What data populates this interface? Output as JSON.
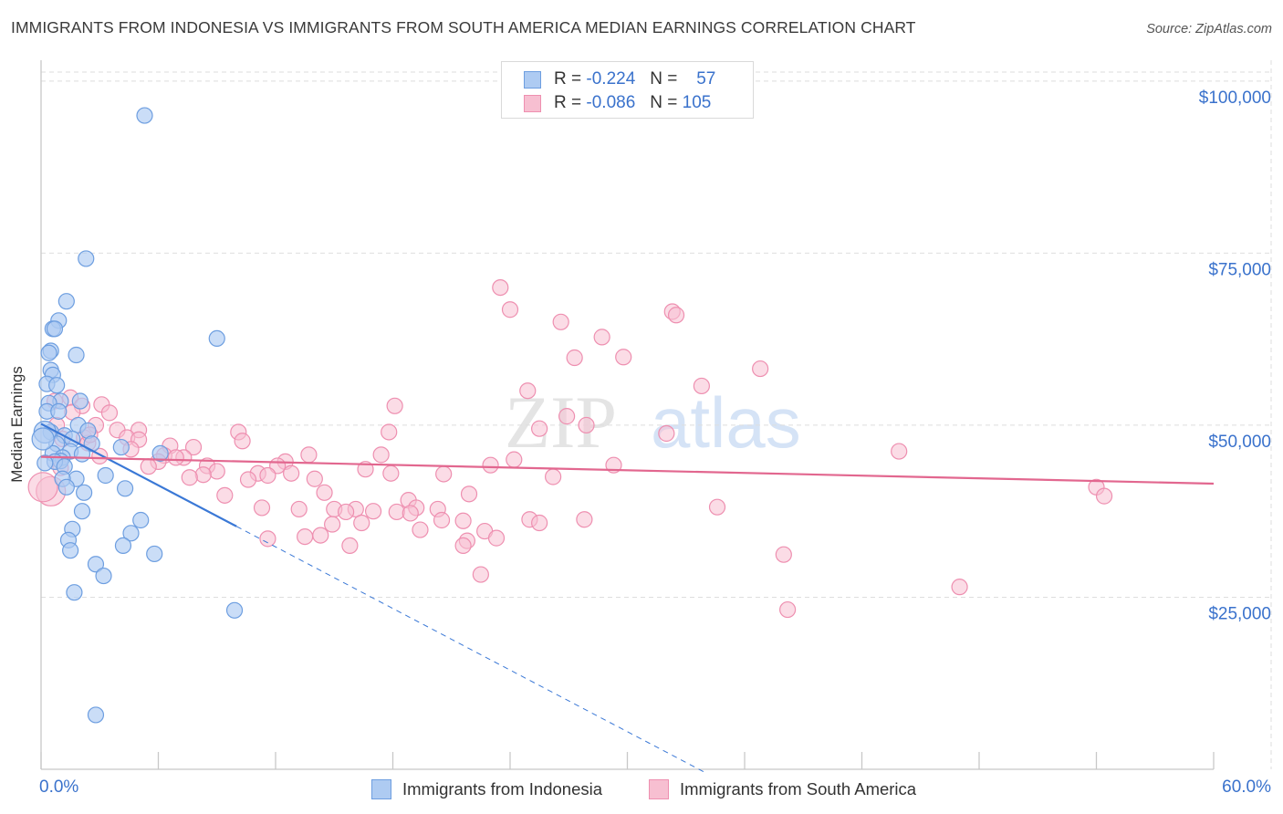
{
  "title": "IMMIGRANTS FROM INDONESIA VS IMMIGRANTS FROM SOUTH AMERICA MEDIAN EARNINGS CORRELATION CHART",
  "source": "Source: ZipAtlas.com",
  "watermark": {
    "text_a": "ZIP",
    "text_b": "atlas"
  },
  "legend": {
    "r_label": "R =",
    "n_label": "N =",
    "indonesia": {
      "r": "-0.224",
      "n": "57"
    },
    "south_america": {
      "r": "-0.086",
      "n": "105"
    }
  },
  "bottom_legend": {
    "indonesia": "Immigrants from Indonesia",
    "south_america": "Immigrants from South America"
  },
  "colors": {
    "indonesia_fill": "#aecbf2",
    "indonesia_stroke": "#6d9ee0",
    "indonesia_line": "#3a78d6",
    "south_america_fill": "#f7bfd1",
    "south_america_stroke": "#ee8fb0",
    "south_america_line": "#e2678f",
    "axis_label": "#3a72cc",
    "grid": "#dedede"
  },
  "chart_data": {
    "type": "scatter",
    "title": "IMMIGRANTS FROM INDONESIA VS IMMIGRANTS FROM SOUTH AMERICA MEDIAN EARNINGS CORRELATION CHART",
    "xlabel": "",
    "ylabel": "Median Earnings",
    "xlim": [
      0,
      60
    ],
    "ylim": [
      0,
      102500
    ],
    "x_tick_labels": [
      "0.0%",
      "60.0%"
    ],
    "y_ticks": [
      25000,
      50000,
      75000,
      100000
    ],
    "y_tick_labels": [
      "$25,000",
      "$50,000",
      "$75,000",
      "$100,000"
    ],
    "series": [
      {
        "name": "Immigrants from Indonesia",
        "r": -0.224,
        "n": 57,
        "trendline": {
          "x0": 0,
          "y0": 50200,
          "x1": 10,
          "y1": 35300,
          "dashed_to_x": 34,
          "dashed_to_y": -500
        },
        "points": [
          [
            5.3,
            95000
          ],
          [
            2.3,
            74200
          ],
          [
            1.3,
            68000
          ],
          [
            0.9,
            65200
          ],
          [
            0.6,
            64000
          ],
          [
            0.7,
            64000
          ],
          [
            0.5,
            60800
          ],
          [
            0.4,
            60500
          ],
          [
            1.8,
            60200
          ],
          [
            9.0,
            62600
          ],
          [
            0.5,
            58000
          ],
          [
            0.6,
            57300
          ],
          [
            0.3,
            56000
          ],
          [
            0.8,
            55800
          ],
          [
            1.0,
            53500
          ],
          [
            0.4,
            53200
          ],
          [
            2.0,
            53500
          ],
          [
            0.3,
            52000
          ],
          [
            0.9,
            52000
          ],
          [
            1.9,
            50000
          ],
          [
            0.5,
            49000
          ],
          [
            2.4,
            49200
          ],
          [
            1.2,
            48500
          ],
          [
            1.6,
            48000
          ],
          [
            0.8,
            47300
          ],
          [
            2.6,
            47300
          ],
          [
            1.5,
            46200
          ],
          [
            0.6,
            45900
          ],
          [
            2.1,
            45800
          ],
          [
            1.1,
            45300
          ],
          [
            6.1,
            45900
          ],
          [
            4.1,
            46800
          ],
          [
            1.0,
            44800
          ],
          [
            0.7,
            44700
          ],
          [
            1.2,
            44000
          ],
          [
            0.2,
            44500
          ],
          [
            3.3,
            42700
          ],
          [
            1.8,
            42200
          ],
          [
            1.1,
            42200
          ],
          [
            2.2,
            40200
          ],
          [
            4.3,
            40800
          ],
          [
            1.3,
            41000
          ],
          [
            2.1,
            37500
          ],
          [
            5.1,
            36200
          ],
          [
            1.6,
            34900
          ],
          [
            4.6,
            34300
          ],
          [
            1.4,
            33300
          ],
          [
            4.2,
            32500
          ],
          [
            1.5,
            31800
          ],
          [
            5.8,
            31300
          ],
          [
            2.8,
            29800
          ],
          [
            3.2,
            28100
          ],
          [
            1.7,
            25700
          ],
          [
            9.9,
            23100
          ],
          [
            2.8,
            7900
          ],
          [
            0.2,
            49000
          ],
          [
            0.1,
            48000
          ]
        ]
      },
      {
        "name": "Immigrants from South America",
        "r": -0.086,
        "n": 105,
        "trendline": {
          "x0": 0,
          "y0": 45400,
          "x1": 60,
          "y1": 41500
        },
        "points": [
          [
            23.5,
            70000
          ],
          [
            24.0,
            66800
          ],
          [
            32.3,
            66500
          ],
          [
            32.5,
            66000
          ],
          [
            26.6,
            65000
          ],
          [
            28.7,
            62800
          ],
          [
            27.3,
            59800
          ],
          [
            29.8,
            59900
          ],
          [
            36.8,
            58200
          ],
          [
            33.8,
            55700
          ],
          [
            24.9,
            55000
          ],
          [
            1.5,
            54000
          ],
          [
            0.7,
            53500
          ],
          [
            3.1,
            53000
          ],
          [
            2.1,
            52800
          ],
          [
            18.1,
            52800
          ],
          [
            1.6,
            51900
          ],
          [
            3.5,
            51800
          ],
          [
            26.9,
            51300
          ],
          [
            0.8,
            50000
          ],
          [
            2.8,
            50000
          ],
          [
            27.9,
            50000
          ],
          [
            3.9,
            49300
          ],
          [
            5.0,
            49300
          ],
          [
            10.1,
            49000
          ],
          [
            17.8,
            49000
          ],
          [
            32.0,
            48800
          ],
          [
            4.4,
            48200
          ],
          [
            2.2,
            48200
          ],
          [
            1.1,
            48000
          ],
          [
            10.3,
            47700
          ],
          [
            5.0,
            47900
          ],
          [
            2.4,
            47400
          ],
          [
            6.6,
            47000
          ],
          [
            7.8,
            46800
          ],
          [
            4.6,
            46500
          ],
          [
            43.9,
            46200
          ],
          [
            6.3,
            45600
          ],
          [
            7.3,
            45300
          ],
          [
            6.9,
            45300
          ],
          [
            13.7,
            45700
          ],
          [
            17.4,
            45700
          ],
          [
            24.2,
            45000
          ],
          [
            12.5,
            44700
          ],
          [
            6.0,
            44700
          ],
          [
            8.5,
            44100
          ],
          [
            12.1,
            44100
          ],
          [
            5.5,
            44000
          ],
          [
            29.3,
            44200
          ],
          [
            23.0,
            44200
          ],
          [
            16.6,
            43600
          ],
          [
            9.0,
            43300
          ],
          [
            11.1,
            43000
          ],
          [
            12.8,
            43000
          ],
          [
            8.3,
            42800
          ],
          [
            17.9,
            43000
          ],
          [
            20.6,
            42900
          ],
          [
            11.6,
            42700
          ],
          [
            7.6,
            42400
          ],
          [
            26.2,
            42500
          ],
          [
            14.0,
            42200
          ],
          [
            10.6,
            42100
          ],
          [
            54.0,
            41000
          ],
          [
            0.5,
            40400
          ],
          [
            14.5,
            40200
          ],
          [
            21.9,
            40000
          ],
          [
            54.4,
            39700
          ],
          [
            9.4,
            39800
          ],
          [
            18.8,
            39100
          ],
          [
            19.2,
            38000
          ],
          [
            11.3,
            38000
          ],
          [
            13.2,
            37800
          ],
          [
            15.0,
            37800
          ],
          [
            16.1,
            37800
          ],
          [
            20.3,
            37800
          ],
          [
            34.6,
            38100
          ],
          [
            15.6,
            37400
          ],
          [
            18.2,
            37400
          ],
          [
            18.9,
            37200
          ],
          [
            17.0,
            37500
          ],
          [
            25.0,
            36300
          ],
          [
            25.5,
            35800
          ],
          [
            27.8,
            36300
          ],
          [
            20.5,
            36200
          ],
          [
            21.6,
            36100
          ],
          [
            14.9,
            35600
          ],
          [
            16.4,
            35800
          ],
          [
            19.4,
            34800
          ],
          [
            22.7,
            34600
          ],
          [
            14.3,
            34000
          ],
          [
            13.5,
            33800
          ],
          [
            23.3,
            33600
          ],
          [
            21.8,
            33200
          ],
          [
            11.6,
            33500
          ],
          [
            15.8,
            32500
          ],
          [
            21.6,
            32500
          ],
          [
            38.0,
            31200
          ],
          [
            22.5,
            28300
          ],
          [
            47.0,
            26500
          ],
          [
            38.2,
            23200
          ],
          [
            0.1,
            41000
          ],
          [
            2.5,
            48600
          ],
          [
            25.5,
            49500
          ],
          [
            1.0,
            43800
          ],
          [
            3.0,
            45500
          ]
        ]
      }
    ]
  }
}
